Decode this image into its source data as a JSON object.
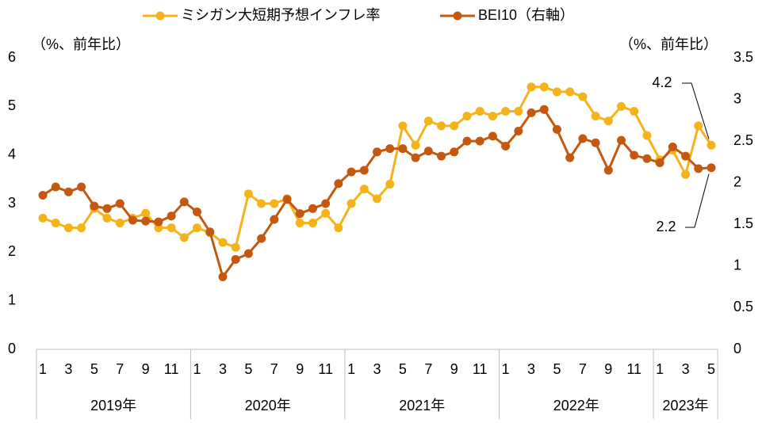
{
  "chart_data": {
    "type": "line",
    "categories": [
      "1",
      null,
      "3",
      null,
      "5",
      null,
      "7",
      null,
      "9",
      null,
      "11",
      null,
      "1",
      null,
      "3",
      null,
      "5",
      null,
      "7",
      null,
      "9",
      null,
      "11",
      null,
      "1",
      null,
      "3",
      null,
      "5",
      null,
      "7",
      null,
      "9",
      null,
      "11",
      null,
      "1",
      null,
      "3",
      null,
      "5",
      null,
      "7",
      null,
      "9",
      null,
      "11",
      null,
      "1",
      null,
      "3",
      null,
      "5"
    ],
    "year_groups": [
      "2019年",
      "2020年",
      "2021年",
      "2022年",
      "2023年"
    ],
    "series": [
      {
        "name": "ミシガン大短期予想インフレ率",
        "color": "#f5b21a",
        "axis": "y",
        "values": [
          2.7,
          2.6,
          2.5,
          2.5,
          2.9,
          2.7,
          2.6,
          2.7,
          2.8,
          2.5,
          2.5,
          2.3,
          2.5,
          2.4,
          2.2,
          2.1,
          3.2,
          3.0,
          3.0,
          3.1,
          2.6,
          2.6,
          2.8,
          2.5,
          3.0,
          3.3,
          3.1,
          3.4,
          4.6,
          4.2,
          4.7,
          4.6,
          4.6,
          4.8,
          4.9,
          4.8,
          4.9,
          4.9,
          5.4,
          5.4,
          5.3,
          5.3,
          5.2,
          4.8,
          4.7,
          5.0,
          4.9,
          4.4,
          3.9,
          4.1,
          3.6,
          4.6,
          4.2
        ]
      },
      {
        "name": "BEI10（右軸）",
        "color": "#c5580f",
        "axis": "y2",
        "values": [
          1.85,
          1.95,
          1.89,
          1.95,
          1.72,
          1.69,
          1.75,
          1.55,
          1.54,
          1.53,
          1.6,
          1.77,
          1.65,
          1.41,
          0.87,
          1.08,
          1.15,
          1.33,
          1.56,
          1.8,
          1.63,
          1.69,
          1.75,
          1.99,
          2.13,
          2.15,
          2.37,
          2.41,
          2.41,
          2.3,
          2.38,
          2.32,
          2.37,
          2.5,
          2.5,
          2.56,
          2.44,
          2.62,
          2.84,
          2.88,
          2.64,
          2.3,
          2.53,
          2.48,
          2.15,
          2.51,
          2.33,
          2.29,
          2.24,
          2.43,
          2.32,
          2.17,
          2.18
        ]
      }
    ],
    "y_unit_label": "（%、前年比）",
    "y2_unit_label": "（%、前年比）",
    "ylim": [
      0,
      6
    ],
    "yticks": [
      0,
      1,
      2,
      3,
      4,
      5,
      6
    ],
    "y2lim": [
      0,
      3.5
    ],
    "y2ticks": [
      0,
      0.5,
      1,
      1.5,
      2,
      2.5,
      3,
      3.5
    ],
    "annotations": [
      "4.2",
      "2.2"
    ],
    "legend": "top"
  }
}
